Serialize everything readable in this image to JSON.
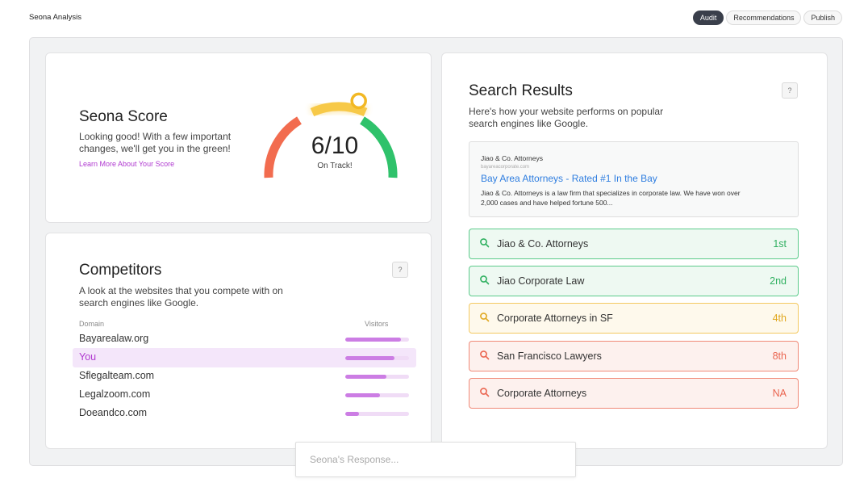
{
  "app": {
    "title": "Seona Analysis"
  },
  "nav": {
    "tabs": [
      {
        "label": "Audit",
        "active": true
      },
      {
        "label": "Recommendations",
        "active": false
      },
      {
        "label": "Publish",
        "active": false
      }
    ]
  },
  "score": {
    "title": "Seona Score",
    "description": "Looking good! With a few important changes, we'll get you in the green!",
    "link": "Learn More About Your Score",
    "value": "6/10",
    "status": "On Track!",
    "score_fraction": 0.6,
    "colors": {
      "low": "#f26c4f",
      "mid": "#f7c948",
      "high": "#2fc26b",
      "link": "#b03ad0"
    }
  },
  "competitors": {
    "title": "Competitors",
    "description": "A look at the websites that you compete with on search engines like Google.",
    "help": "?",
    "col_domain": "Domain",
    "col_visitors": "Visitors",
    "rows": [
      {
        "domain": "Bayarealaw.org",
        "visitors": 0.87,
        "highlight": false
      },
      {
        "domain": "You",
        "visitors": 0.77,
        "highlight": true
      },
      {
        "domain": "Sflegalteam.com",
        "visitors": 0.64,
        "highlight": false
      },
      {
        "domain": "Legalzoom.com",
        "visitors": 0.55,
        "highlight": false
      },
      {
        "domain": "Doeandco.com",
        "visitors": 0.22,
        "highlight": false
      }
    ]
  },
  "search": {
    "title": "Search Results",
    "description": "Here's how your website performs on popular search engines like Google.",
    "help": "?",
    "preview": {
      "site": "Jiao & Co. Attorneys",
      "url": "bayareacorporate.com",
      "title": "Bay Area Attorneys - Rated #1 In the Bay",
      "snippet": "Jiao & Co. Attorneys is a law firm that specializes in corporate law. We have won over 2,000 cases and have helped fortune 500..."
    },
    "keywords": [
      {
        "text": "Jiao & Co. Attorneys",
        "rank": "1st",
        "status": "good"
      },
      {
        "text": "Jiao Corporate Law",
        "rank": "2nd",
        "status": "good"
      },
      {
        "text": "Corporate Attorneys in SF",
        "rank": "4th",
        "status": "ok"
      },
      {
        "text": "San Francisco Lawyers",
        "rank": "8th",
        "status": "bad"
      },
      {
        "text": "Corporate Attorneys",
        "rank": "NA",
        "status": "bad"
      }
    ],
    "status_colors": {
      "good": {
        "border": "#5ccb8b",
        "bg": "#eef9f2",
        "text": "#2fb060"
      },
      "ok": {
        "border": "#f3c961",
        "bg": "#fef9ec",
        "text": "#e0a820"
      },
      "bad": {
        "border": "#f08a78",
        "bg": "#fdf1ee",
        "text": "#ea6550"
      }
    }
  },
  "response": {
    "placeholder": "Seona's Response..."
  }
}
